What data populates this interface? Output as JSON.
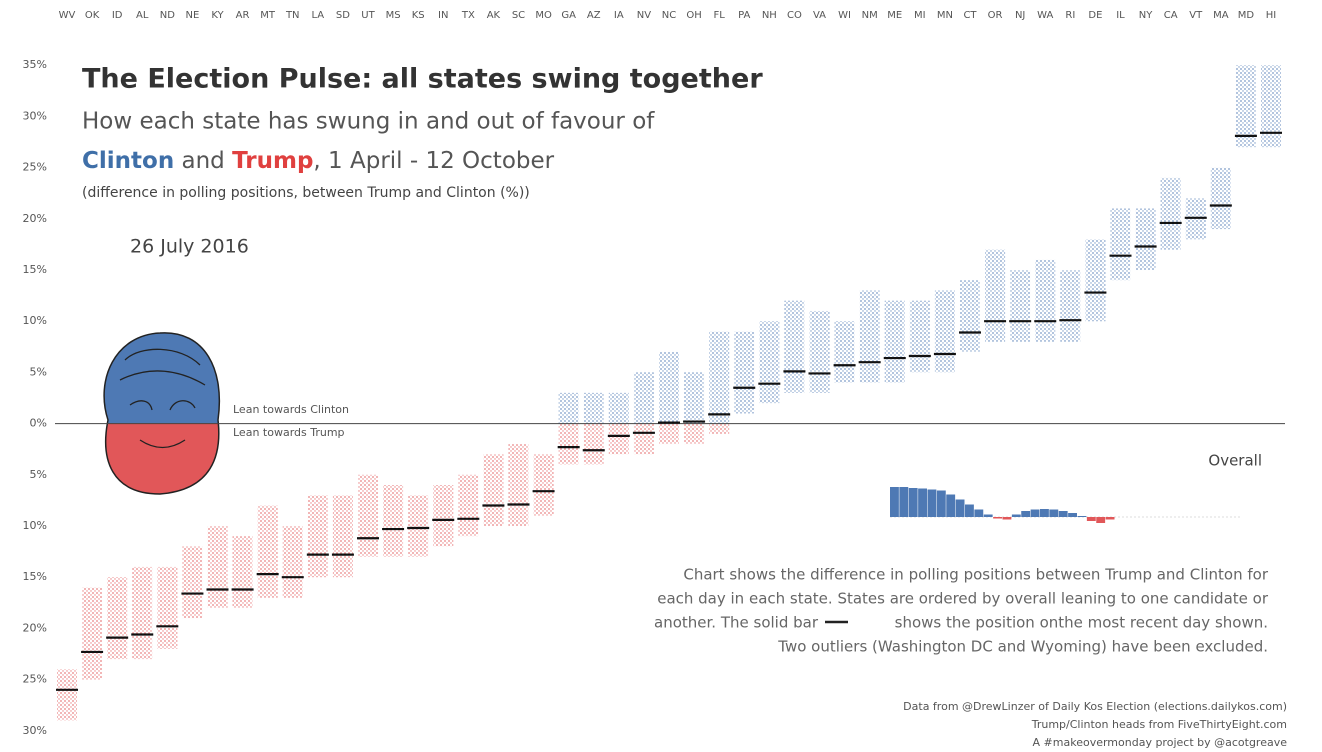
{
  "chart_data": {
    "type": "strip",
    "title": "The Election Pulse: all states swing together",
    "subtitle": "How each state has swung in and out of favour of",
    "subtitle_parts": [
      {
        "text": "Clinton",
        "color": "#3f6fa8",
        "bold": true
      },
      {
        "text": " and ",
        "color": "#555555",
        "bold": false
      },
      {
        "text": "Trump",
        "color": "#e0403f",
        "bold": true
      },
      {
        "text": ", 1 April - 12 October",
        "color": "#555555",
        "bold": false
      }
    ],
    "note": "(difference in polling positions, between Trump and Clinton (%))",
    "date": "26 July 2016",
    "lean_clinton": "Lean towards Clinton",
    "lean_trump": "Lean towards Trump",
    "clinton_color": "#4e79b4",
    "trump_color": "#e15759",
    "categories": [
      "WV",
      "OK",
      "ID",
      "AL",
      "ND",
      "NE",
      "KY",
      "AR",
      "MT",
      "TN",
      "LA",
      "SD",
      "UT",
      "MS",
      "KS",
      "IN",
      "TX",
      "AK",
      "SC",
      "MO",
      "GA",
      "AZ",
      "IA",
      "NV",
      "NC",
      "OH",
      "FL",
      "PA",
      "NH",
      "CO",
      "VA",
      "WI",
      "NM",
      "ME",
      "MI",
      "MN",
      "CT",
      "OR",
      "NJ",
      "WA",
      "RI",
      "DE",
      "IL",
      "NY",
      "CA",
      "VT",
      "MA",
      "MD",
      "HI"
    ],
    "values": [
      -26,
      -22.3,
      -20.9,
      -20.6,
      -19.8,
      -16.6,
      -16.2,
      -16.2,
      -14.7,
      -15,
      -12.8,
      -12.8,
      -11.2,
      -10.3,
      -10.2,
      -9.4,
      -9.3,
      -8,
      -7.9,
      -6.6,
      -2.3,
      -2.6,
      -1.2,
      -0.9,
      0.1,
      0.2,
      0.9,
      3.5,
      3.9,
      5.1,
      4.9,
      5.7,
      6,
      6.4,
      6.6,
      6.8,
      8.9,
      10,
      10,
      10,
      10.1,
      12.8,
      16.4,
      17.3,
      19.6,
      20.1,
      21.3,
      28.1,
      28.4
    ],
    "low": [
      -29,
      -25,
      -23,
      -23,
      -22,
      -19,
      -18,
      -18,
      -17,
      -17,
      -15,
      -15,
      -13,
      -13,
      -13,
      -12,
      -11,
      -10,
      -10,
      -9,
      -4,
      -4,
      -3,
      -3,
      -2,
      -2,
      -1,
      1,
      2,
      3,
      3,
      4,
      4,
      4,
      5,
      5,
      7,
      8,
      8,
      8,
      8,
      10,
      14,
      15,
      17,
      18,
      19,
      27,
      27
    ],
    "high": [
      -24,
      -16,
      -15,
      -14,
      -14,
      -12,
      -10,
      -11,
      -8,
      -10,
      -7,
      -7,
      -5,
      -6,
      -7,
      -6,
      -5,
      -3,
      -2,
      -3,
      3,
      3,
      3,
      5,
      7,
      5,
      9,
      9,
      10,
      12,
      11,
      10,
      13,
      12,
      12,
      13,
      14,
      17,
      15,
      16,
      15,
      18,
      21,
      21,
      24,
      22,
      25,
      35,
      35
    ],
    "ylim": [
      -31,
      36
    ],
    "yticks": [
      {
        "value": 35,
        "label": "35%"
      },
      {
        "value": 30,
        "label": "30%"
      },
      {
        "value": 25,
        "label": "25%"
      },
      {
        "value": 20,
        "label": "20%"
      },
      {
        "value": 15,
        "label": "15%"
      },
      {
        "value": 10,
        "label": "10%"
      },
      {
        "value": 5,
        "label": "5%"
      },
      {
        "value": 0,
        "label": "0%"
      },
      {
        "value": -5,
        "label": "5%"
      },
      {
        "value": -10,
        "label": "10%"
      },
      {
        "value": -15,
        "label": "15%"
      },
      {
        "value": -20,
        "label": "20%"
      },
      {
        "value": -25,
        "label": "25%"
      },
      {
        "value": -30,
        "label": "30%"
      }
    ],
    "overall": {
      "label": "Overall",
      "values": [
        6,
        6,
        5.8,
        5.7,
        5.5,
        5.3,
        4.5,
        3.5,
        2.5,
        1.5,
        0.5,
        -0.3,
        -0.5,
        0.5,
        1.2,
        1.5,
        1.6,
        1.5,
        1.2,
        0.8,
        0.2,
        -0.8,
        -1.2,
        -0.5
      ],
      "ylim": [
        -2,
        6
      ]
    },
    "description": [
      "Chart shows the difference in polling positions between Trump and Clinton for",
      "each day in each state. States are ordered by overall leaning to one candidate or",
      "another. The solid bar",
      "shows the position onthe most recent day shown.",
      "Two outliers (Washington DC and Wyoming) have been excluded."
    ],
    "credits": [
      "Data from @DrewLinzer of Daily Kos Election (elections.dailykos.com)",
      "Trump/Clinton heads from FiveThirtyEight.com",
      "A #makeovermonday project by @acotgreave"
    ]
  }
}
